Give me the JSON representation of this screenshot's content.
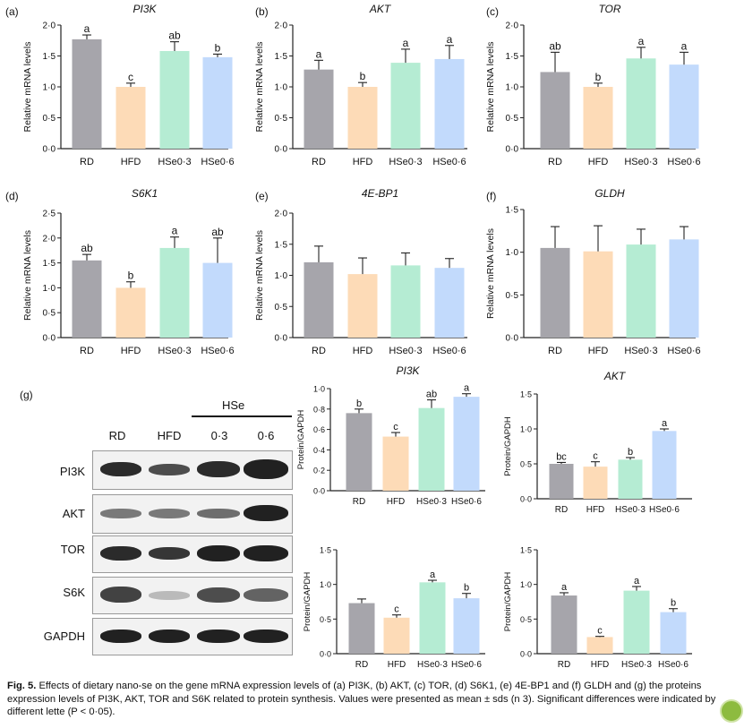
{
  "chart_data": [
    {
      "type": "bar",
      "panel": "(a)",
      "title": "PI3K",
      "ylabel": "Relative mRNA levels",
      "categories": [
        "RD",
        "HFD",
        "HSe0·3",
        "HSe0·6"
      ],
      "values": [
        1.77,
        1.0,
        1.58,
        1.48
      ],
      "errors": [
        0.07,
        0.06,
        0.15,
        0.05
      ],
      "letters": [
        "a",
        "c",
        "ab",
        "b"
      ],
      "ylim": [
        0,
        2.0
      ],
      "yticks": [
        "0·0",
        "0·5",
        "1·0",
        "1·5",
        "2·0"
      ]
    },
    {
      "type": "bar",
      "panel": "(b)",
      "title": "AKT",
      "ylabel": "Relative mRNA levels",
      "categories": [
        "RD",
        "HFD",
        "HSe0·3",
        "HSe0·6"
      ],
      "values": [
        1.28,
        1.0,
        1.39,
        1.45
      ],
      "errors": [
        0.15,
        0.07,
        0.22,
        0.22
      ],
      "letters": [
        "a",
        "b",
        "a",
        "a"
      ],
      "ylim": [
        0,
        2.0
      ],
      "yticks": [
        "0·0",
        "0·5",
        "1·0",
        "1·5",
        "2·0"
      ]
    },
    {
      "type": "bar",
      "panel": "(c)",
      "title": "TOR",
      "ylabel": "Relative mRNA levels",
      "categories": [
        "RD",
        "HFD",
        "HSe0·3",
        "HSe0·6"
      ],
      "values": [
        1.24,
        1.0,
        1.46,
        1.36
      ],
      "errors": [
        0.32,
        0.06,
        0.18,
        0.2
      ],
      "letters": [
        "ab",
        "b",
        "a",
        "a"
      ],
      "ylim": [
        0,
        2.0
      ],
      "yticks": [
        "0·0",
        "0·5",
        "1·0",
        "1·5",
        "2·0"
      ]
    },
    {
      "type": "bar",
      "panel": "(d)",
      "title": "S6K1",
      "ylabel": "Relative mRNA levels",
      "categories": [
        "RD",
        "HFD",
        "HSe0·3",
        "HSe0·6"
      ],
      "values": [
        1.55,
        1.0,
        1.8,
        1.5
      ],
      "errors": [
        0.12,
        0.12,
        0.22,
        0.5
      ],
      "letters": [
        "ab",
        "b",
        "a",
        "ab"
      ],
      "ylim": [
        0,
        2.5
      ],
      "yticks": [
        "0·0",
        "0·5",
        "1·0",
        "1·5",
        "2·0",
        "2·5"
      ]
    },
    {
      "type": "bar",
      "panel": "(e)",
      "title": "4E-BP1",
      "ylabel": "Relative mRNA levels",
      "categories": [
        "RD",
        "HFD",
        "HSe0·3",
        "HSe0·6"
      ],
      "values": [
        1.21,
        1.02,
        1.16,
        1.12
      ],
      "errors": [
        0.26,
        0.26,
        0.2,
        0.15
      ],
      "letters": [
        "",
        "",
        "",
        ""
      ],
      "ylim": [
        0,
        2.0
      ],
      "yticks": [
        "0·0",
        "0·5",
        "1·0",
        "1·5",
        "2·0"
      ]
    },
    {
      "type": "bar",
      "panel": "(f)",
      "title": "GLDH",
      "ylabel": "Relative mRNA levels",
      "categories": [
        "RD",
        "HFD",
        "HSe0·3",
        "HSe0·6"
      ],
      "values": [
        1.05,
        1.01,
        1.09,
        1.15
      ],
      "errors": [
        0.25,
        0.3,
        0.18,
        0.15
      ],
      "letters": [
        "",
        "",
        "",
        ""
      ],
      "ylim": [
        0,
        1.5
      ],
      "yticks": [
        "0·0",
        "0·5",
        "1·0",
        "1·5"
      ]
    },
    {
      "type": "bar",
      "panel": "",
      "title": "PI3K",
      "ylabel": "Protein/GAPDH",
      "categories": [
        "RD",
        "HFD",
        "HSe0·3",
        "HSe0·6"
      ],
      "values": [
        0.76,
        0.53,
        0.81,
        0.92
      ],
      "errors": [
        0.04,
        0.04,
        0.08,
        0.03
      ],
      "letters": [
        "b",
        "c",
        "ab",
        "a"
      ],
      "ylim": [
        0,
        1.0
      ],
      "yticks": [
        "0·0",
        "0·2",
        "0·4",
        "0·6",
        "0·8",
        "1·0"
      ]
    },
    {
      "type": "bar",
      "panel": "",
      "title": "AKT",
      "ylabel": "Protein/GAPDH",
      "categories": [
        "RD",
        "HFD",
        "HSe0·3",
        "HSe0·6"
      ],
      "values": [
        0.5,
        0.46,
        0.56,
        0.97
      ],
      "errors": [
        0.02,
        0.07,
        0.03,
        0.03
      ],
      "letters": [
        "bc",
        "c",
        "b",
        "a"
      ],
      "ylim": [
        0,
        1.5
      ],
      "yticks": [
        "0·0",
        "0·5",
        "1·0",
        "1·5"
      ]
    },
    {
      "type": "bar",
      "panel": "",
      "title": "",
      "ylabel": "Protein/GAPDH",
      "categories": [
        "RD",
        "HFD",
        "HSe0·3",
        "HSe0·6"
      ],
      "values": [
        0.73,
        0.52,
        1.03,
        0.8
      ],
      "errors": [
        0.06,
        0.04,
        0.03,
        0.07
      ],
      "letters": [
        "",
        "c",
        "a",
        "b"
      ],
      "ylim": [
        0,
        1.5
      ],
      "yticks": [
        "0·0",
        "0·5",
        "1·0",
        "1·5"
      ]
    },
    {
      "type": "bar",
      "panel": "",
      "title": "",
      "ylabel": "Protein/GAPDH",
      "categories": [
        "RD",
        "HFD",
        "HSe0·3",
        "HSe0·6"
      ],
      "values": [
        0.84,
        0.24,
        0.91,
        0.6
      ],
      "errors": [
        0.04,
        0.01,
        0.06,
        0.05
      ],
      "letters": [
        "a",
        "c",
        "a",
        "b"
      ],
      "ylim": [
        0,
        1.5
      ],
      "yticks": [
        "0·0",
        "0·5",
        "1·0",
        "1·5"
      ]
    }
  ],
  "colors": {
    "RD": "#a6a5ab",
    "HFD": "#fddbb7",
    "HSe0_3": "#b5ecd3",
    "HSe0_6": "#c2dafc"
  },
  "blot": {
    "panel_label": "(g)",
    "group_label": "HSe",
    "lanes": [
      "RD",
      "HFD",
      "0·3",
      "0·6"
    ],
    "rows": [
      "PI3K",
      "AKT",
      "TOR",
      "S6K",
      "GAPDH"
    ]
  },
  "caption": {
    "fig_label": "Fig. 5.",
    "text": "Effects of dietary nano-se on the gene mRNA expression levels of (a) PI3K, (b) AKT, (c) TOR, (d) S6K1, (e) 4E-BP1 and (f) GLDH and (g) the proteins expression levels of PI3K, AKT, TOR and S6K related to protein synthesis. Values were presented as mean ± sds (n 3). Significant differences were indicated by different lette (P < 0·05)."
  }
}
